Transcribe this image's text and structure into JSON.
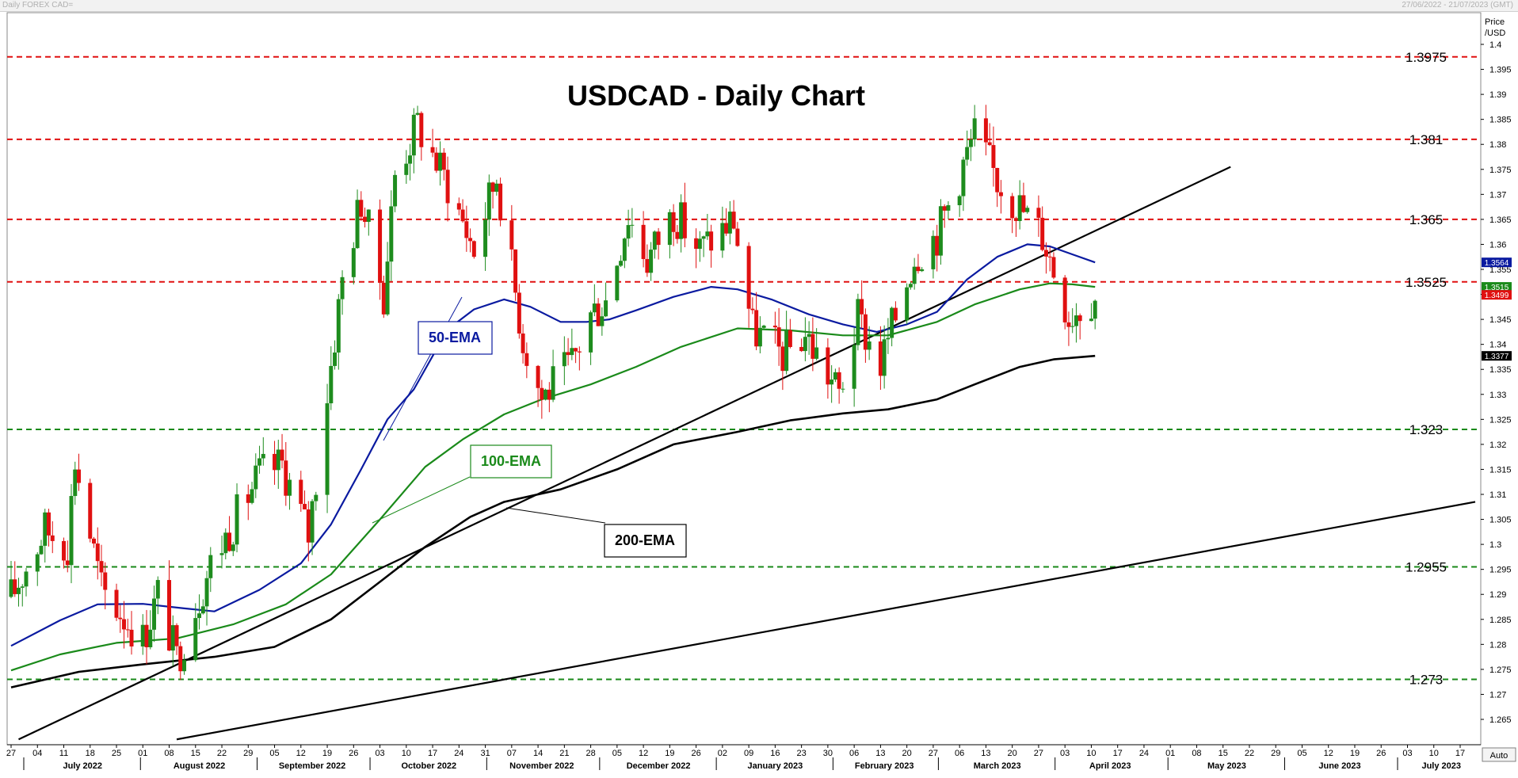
{
  "header": {
    "left": "Daily FOREX CAD=",
    "right": "27/06/2022 - 21/07/2023 (GMT)"
  },
  "auto_button": "Auto",
  "price_axis_title": [
    "Price",
    "/USD"
  ],
  "colors": {
    "up": "#1e8c1e",
    "down": "#e01010",
    "ema50": "#0a1aa0",
    "ema100": "#1a8a1a",
    "ema200": "#000000",
    "resistance": "#e01010",
    "support": "#1a8a1a"
  },
  "chart_data": {
    "type": "candlestick",
    "title": "USDCAD - Daily Chart",
    "ylim": [
      1.261,
      1.402
    ],
    "x_start": "2022-06-27",
    "x_end": "2023-07-21",
    "y_ticks": [
      "1.4",
      "1.395",
      "1.39",
      "1.385",
      "1.38",
      "1.375",
      "1.37",
      "1.365",
      "1.36",
      "1.355",
      "1.35",
      "1.345",
      "1.34",
      "1.335",
      "1.33",
      "1.325",
      "1.32",
      "1.315",
      "1.31",
      "1.305",
      "1.3",
      "1.295",
      "1.29",
      "1.285",
      "1.28",
      "1.275",
      "1.27",
      "1.265"
    ],
    "x_ticks": [
      {
        "date": "2022-06-27",
        "label": "27"
      },
      {
        "date": "2022-07-04",
        "label": "04"
      },
      {
        "date": "2022-07-11",
        "label": "11"
      },
      {
        "date": "2022-07-18",
        "label": "18"
      },
      {
        "date": "2022-07-25",
        "label": "25"
      },
      {
        "date": "2022-08-01",
        "label": "01"
      },
      {
        "date": "2022-08-08",
        "label": "08"
      },
      {
        "date": "2022-08-15",
        "label": "15"
      },
      {
        "date": "2022-08-22",
        "label": "22"
      },
      {
        "date": "2022-08-29",
        "label": "29"
      },
      {
        "date": "2022-09-05",
        "label": "05"
      },
      {
        "date": "2022-09-12",
        "label": "12"
      },
      {
        "date": "2022-09-19",
        "label": "19"
      },
      {
        "date": "2022-09-26",
        "label": "26"
      },
      {
        "date": "2022-10-03",
        "label": "03"
      },
      {
        "date": "2022-10-10",
        "label": "10"
      },
      {
        "date": "2022-10-17",
        "label": "17"
      },
      {
        "date": "2022-10-24",
        "label": "24"
      },
      {
        "date": "2022-10-31",
        "label": "31"
      },
      {
        "date": "2022-11-07",
        "label": "07"
      },
      {
        "date": "2022-11-14",
        "label": "14"
      },
      {
        "date": "2022-11-21",
        "label": "21"
      },
      {
        "date": "2022-11-28",
        "label": "28"
      },
      {
        "date": "2022-12-05",
        "label": "05"
      },
      {
        "date": "2022-12-12",
        "label": "12"
      },
      {
        "date": "2022-12-19",
        "label": "19"
      },
      {
        "date": "2022-12-26",
        "label": "26"
      },
      {
        "date": "2023-01-02",
        "label": "02"
      },
      {
        "date": "2023-01-09",
        "label": "09"
      },
      {
        "date": "2023-01-16",
        "label": "16"
      },
      {
        "date": "2023-01-23",
        "label": "23"
      },
      {
        "date": "2023-01-30",
        "label": "30"
      },
      {
        "date": "2023-02-06",
        "label": "06"
      },
      {
        "date": "2023-02-13",
        "label": "13"
      },
      {
        "date": "2023-02-20",
        "label": "20"
      },
      {
        "date": "2023-02-27",
        "label": "27"
      },
      {
        "date": "2023-03-06",
        "label": "06"
      },
      {
        "date": "2023-03-13",
        "label": "13"
      },
      {
        "date": "2023-03-20",
        "label": "20"
      },
      {
        "date": "2023-03-27",
        "label": "27"
      },
      {
        "date": "2023-04-03",
        "label": "03"
      },
      {
        "date": "2023-04-10",
        "label": "10"
      },
      {
        "date": "2023-04-17",
        "label": "17"
      },
      {
        "date": "2023-04-24",
        "label": "24"
      },
      {
        "date": "2023-05-01",
        "label": "01"
      },
      {
        "date": "2023-05-08",
        "label": "08"
      },
      {
        "date": "2023-05-15",
        "label": "15"
      },
      {
        "date": "2023-05-22",
        "label": "22"
      },
      {
        "date": "2023-05-29",
        "label": "29"
      },
      {
        "date": "2023-06-05",
        "label": "05"
      },
      {
        "date": "2023-06-12",
        "label": "12"
      },
      {
        "date": "2023-06-19",
        "label": "19"
      },
      {
        "date": "2023-06-26",
        "label": "26"
      },
      {
        "date": "2023-07-03",
        "label": "03"
      },
      {
        "date": "2023-07-10",
        "label": "10"
      },
      {
        "date": "2023-07-17",
        "label": "17"
      }
    ],
    "months": [
      {
        "date": "2022-07-16",
        "label": "July 2022"
      },
      {
        "date": "2022-08-16",
        "label": "August 2022"
      },
      {
        "date": "2022-09-15",
        "label": "September 2022"
      },
      {
        "date": "2022-10-16",
        "label": "October 2022"
      },
      {
        "date": "2022-11-15",
        "label": "November 2022"
      },
      {
        "date": "2022-12-16",
        "label": "December 2022"
      },
      {
        "date": "2023-01-16",
        "label": "January 2023"
      },
      {
        "date": "2023-02-14",
        "label": "February 2023"
      },
      {
        "date": "2023-03-16",
        "label": "March 2023"
      },
      {
        "date": "2023-04-15",
        "label": "April 2023"
      },
      {
        "date": "2023-05-16",
        "label": "May 2023"
      },
      {
        "date": "2023-06-15",
        "label": "June 2023"
      },
      {
        "date": "2023-07-12",
        "label": "July 2023"
      }
    ],
    "month_boundaries": [
      "2022-07-01",
      "2022-08-01",
      "2022-09-01",
      "2022-10-01",
      "2022-11-01",
      "2022-12-01",
      "2023-01-01",
      "2023-02-01",
      "2023-03-01",
      "2023-04-01",
      "2023-05-01",
      "2023-06-01",
      "2023-07-01"
    ],
    "levels": [
      {
        "value": 1.3975,
        "label": "1.3975",
        "kind": "resistance"
      },
      {
        "value": 1.381,
        "label": "1.381",
        "kind": "resistance"
      },
      {
        "value": 1.365,
        "label": "1.365",
        "kind": "resistance"
      },
      {
        "value": 1.3525,
        "label": "1.3525",
        "kind": "resistance"
      },
      {
        "value": 1.323,
        "label": "1.323",
        "kind": "support"
      },
      {
        "value": 1.2955,
        "label": "1.2955",
        "kind": "support"
      },
      {
        "value": 1.273,
        "label": "1.273",
        "kind": "support"
      }
    ],
    "price_labels": [
      {
        "value": 1.3564,
        "label": "1.3564",
        "color": "#0a1aa0"
      },
      {
        "value": 1.3515,
        "label": "1.3515",
        "color": "#1a8a1a"
      },
      {
        "value": 1.3499,
        "label": "1.3499",
        "color": "#e01010"
      },
      {
        "value": 1.3377,
        "label": "1.3377",
        "color": "#000000"
      }
    ],
    "trendlines": [
      {
        "from": {
          "date": "2022-06-29",
          "y": 1.261
        },
        "to": {
          "date": "2023-05-17",
          "y": 1.3755
        }
      },
      {
        "from": {
          "date": "2022-08-10",
          "y": 1.261
        },
        "to": {
          "date": "2023-07-21",
          "y": 1.3085
        }
      }
    ],
    "ema_series": [
      {
        "name": "50-EMA",
        "key": "ema50",
        "points": [
          [
            "2022-06-27",
            1.2797
          ],
          [
            "2022-07-10",
            1.2848
          ],
          [
            "2022-07-20",
            1.288
          ],
          [
            "2022-08-01",
            1.2881
          ],
          [
            "2022-08-12",
            1.2872
          ],
          [
            "2022-08-20",
            1.2866
          ],
          [
            "2022-09-01",
            1.2909
          ],
          [
            "2022-09-12",
            1.2962
          ],
          [
            "2022-09-20",
            1.304
          ],
          [
            "2022-09-28",
            1.315
          ],
          [
            "2022-10-05",
            1.325
          ],
          [
            "2022-10-12",
            1.331
          ],
          [
            "2022-10-21",
            1.343
          ],
          [
            "2022-10-28",
            1.347
          ],
          [
            "2022-11-05",
            1.349
          ],
          [
            "2022-11-12",
            1.3475
          ],
          [
            "2022-11-20",
            1.3445
          ],
          [
            "2022-11-27",
            1.3445
          ],
          [
            "2022-12-03",
            1.345
          ],
          [
            "2022-12-10",
            1.3468
          ],
          [
            "2022-12-20",
            1.3495
          ],
          [
            "2022-12-30",
            1.3515
          ],
          [
            "2023-01-06",
            1.351
          ],
          [
            "2023-01-15",
            1.349
          ],
          [
            "2023-01-25",
            1.346
          ],
          [
            "2023-02-03",
            1.344
          ],
          [
            "2023-02-12",
            1.3425
          ],
          [
            "2023-02-20",
            1.344
          ],
          [
            "2023-02-28",
            1.3465
          ],
          [
            "2023-03-08",
            1.353
          ],
          [
            "2023-03-16",
            1.3575
          ],
          [
            "2023-03-24",
            1.36
          ],
          [
            "2023-03-30",
            1.3596
          ],
          [
            "2023-04-05",
            1.358
          ],
          [
            "2023-04-11",
            1.3564
          ]
        ]
      },
      {
        "name": "100-EMA",
        "key": "ema100",
        "points": [
          [
            "2022-06-27",
            1.2748
          ],
          [
            "2022-07-10",
            1.278
          ],
          [
            "2022-07-25",
            1.2803
          ],
          [
            "2022-08-10",
            1.2812
          ],
          [
            "2022-08-25",
            1.284
          ],
          [
            "2022-09-08",
            1.288
          ],
          [
            "2022-09-20",
            1.294
          ],
          [
            "2022-10-03",
            1.305
          ],
          [
            "2022-10-15",
            1.3155
          ],
          [
            "2022-10-25",
            1.321
          ],
          [
            "2022-11-05",
            1.326
          ],
          [
            "2022-11-15",
            1.329
          ],
          [
            "2022-11-28",
            1.332
          ],
          [
            "2022-12-10",
            1.3355
          ],
          [
            "2022-12-22",
            1.3395
          ],
          [
            "2023-01-06",
            1.3432
          ],
          [
            "2023-01-20",
            1.3428
          ],
          [
            "2023-02-03",
            1.3418
          ],
          [
            "2023-02-15",
            1.3418
          ],
          [
            "2023-02-28",
            1.3445
          ],
          [
            "2023-03-10",
            1.348
          ],
          [
            "2023-03-22",
            1.351
          ],
          [
            "2023-03-30",
            1.3522
          ],
          [
            "2023-04-05",
            1.352
          ],
          [
            "2023-04-11",
            1.3515
          ]
        ]
      },
      {
        "name": "200-EMA",
        "key": "ema200",
        "points": [
          [
            "2022-06-27",
            1.2714
          ],
          [
            "2022-07-15",
            1.2745
          ],
          [
            "2022-08-01",
            1.276
          ],
          [
            "2022-08-20",
            1.2775
          ],
          [
            "2022-09-05",
            1.2795
          ],
          [
            "2022-09-20",
            1.285
          ],
          [
            "2022-10-03",
            1.2925
          ],
          [
            "2022-10-15",
            1.2995
          ],
          [
            "2022-10-27",
            1.3055
          ],
          [
            "2022-11-05",
            1.3085
          ],
          [
            "2022-11-20",
            1.311
          ],
          [
            "2022-12-05",
            1.315
          ],
          [
            "2022-12-20",
            1.32
          ],
          [
            "2023-01-06",
            1.3225
          ],
          [
            "2023-01-20",
            1.3248
          ],
          [
            "2023-02-03",
            1.3262
          ],
          [
            "2023-02-15",
            1.327
          ],
          [
            "2023-02-28",
            1.329
          ],
          [
            "2023-03-10",
            1.332
          ],
          [
            "2023-03-22",
            1.3355
          ],
          [
            "2023-03-31",
            1.337
          ],
          [
            "2023-04-11",
            1.3377
          ]
        ]
      }
    ],
    "candle_waypoints": [
      [
        "2022-06-27",
        1.2895
      ],
      [
        "2022-07-06",
        1.303
      ],
      [
        "2022-07-12",
        1.3
      ],
      [
        "2022-07-14",
        1.317
      ],
      [
        "2022-07-21",
        1.291
      ],
      [
        "2022-08-01",
        1.281
      ],
      [
        "2022-08-05",
        1.29
      ],
      [
        "2022-08-10",
        1.277
      ],
      [
        "2022-08-19",
        1.296
      ],
      [
        "2022-09-01",
        1.314
      ],
      [
        "2022-09-07",
        1.316
      ],
      [
        "2022-09-14",
        1.302
      ],
      [
        "2022-09-23",
        1.353
      ],
      [
        "2022-09-28",
        1.369
      ],
      [
        "2022-10-04",
        1.35
      ],
      [
        "2022-10-07",
        1.374
      ],
      [
        "2022-10-13",
        1.384
      ],
      [
        "2022-10-21",
        1.372
      ],
      [
        "2022-10-28",
        1.359
      ],
      [
        "2022-11-03",
        1.374
      ],
      [
        "2022-11-10",
        1.341
      ],
      [
        "2022-11-15",
        1.3295
      ],
      [
        "2022-11-23",
        1.336
      ],
      [
        "2022-11-28",
        1.346
      ],
      [
        "2022-12-02",
        1.349
      ],
      [
        "2022-12-08",
        1.366
      ],
      [
        "2022-12-13",
        1.357
      ],
      [
        "2022-12-20",
        1.3665
      ],
      [
        "2022-12-27",
        1.359
      ],
      [
        "2023-01-05",
        1.365
      ],
      [
        "2023-01-10",
        1.343
      ],
      [
        "2023-01-18",
        1.338
      ],
      [
        "2023-01-24",
        1.342
      ],
      [
        "2023-02-02",
        1.33
      ],
      [
        "2023-02-07",
        1.345
      ],
      [
        "2023-02-13",
        1.336
      ],
      [
        "2023-02-22",
        1.358
      ],
      [
        "2023-02-28",
        1.362
      ],
      [
        "2023-03-10",
        1.382
      ],
      [
        "2023-03-16",
        1.373
      ],
      [
        "2023-03-28",
        1.362
      ],
      [
        "2023-04-04",
        1.346
      ],
      [
        "2023-04-11",
        1.3499
      ]
    ]
  },
  "annotations": {
    "ema50_label": "50-EMA",
    "ema100_label": "100-EMA",
    "ema200_label": "200-EMA"
  }
}
